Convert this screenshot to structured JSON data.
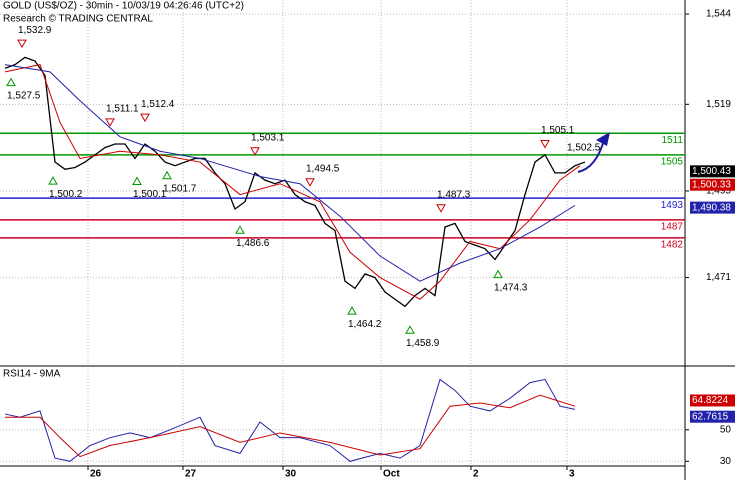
{
  "chart_data": [
    {
      "type": "line",
      "title": "GOLD (US$/OZ) - 30min - 10/03/19 04:26:46 (UTC+2)",
      "subtitle": "Research © TRADING CENTRAL",
      "xlim": [
        0,
        342.5
      ],
      "ylim": [
        1446.5,
        1547.9
      ],
      "yticks": [
        {
          "value": 1544,
          "label": "1,544"
        },
        {
          "value": 1519,
          "label": "1,519"
        },
        {
          "value": 1495,
          "label": "1,495"
        },
        {
          "value": 1471,
          "label": "1,471"
        }
      ],
      "series": [
        {
          "color": "#000000",
          "x": [
            2.5,
            7.5,
            12.5,
            17.5,
            22.5,
            27.5,
            32.5,
            37.5,
            42.5,
            47.5,
            52.5,
            57.5,
            62.5,
            67.5,
            72.5,
            77.5,
            82.5,
            87.5,
            92.5,
            97.5,
            102.5,
            107.5,
            112.5,
            117.5,
            122.5,
            127.5,
            132.5,
            137.5,
            142.5,
            147.5,
            152.5,
            157.5,
            162.5,
            167.5,
            172.5,
            177.5,
            182.5,
            187.5,
            192.5,
            197.5,
            202.5,
            207.5,
            212.5,
            217.5,
            222.5,
            227.5,
            232.5,
            237.5,
            242.5,
            247.5,
            252.5,
            257.5,
            262.5,
            267.5,
            272.5,
            277.5,
            282.5,
            287.5,
            292.5
          ],
          "values": [
            1529,
            1530,
            1532,
            1531,
            1527,
            1503,
            1501,
            1501.5,
            1503,
            1505,
            1507,
            1508,
            1508,
            1504,
            1508,
            1506,
            1503,
            1502,
            1503,
            1504,
            1504,
            1500,
            1497,
            1490,
            1492,
            1500,
            1498,
            1497,
            1498,
            1494,
            1492,
            1491,
            1486,
            1484,
            1470,
            1468,
            1472,
            1471,
            1467,
            1465,
            1463,
            1466,
            1468,
            1466,
            1485,
            1486,
            1481,
            1480,
            1479,
            1476,
            1480,
            1484,
            1494,
            1503,
            1505,
            1500,
            1500,
            1502,
            1503
          ]
        },
        {
          "color": "#cc0000",
          "x": [
            2.5,
            20,
            30,
            40,
            60,
            80,
            100,
            120,
            140,
            160,
            175,
            190,
            210,
            220,
            235,
            250,
            265,
            280,
            290
          ],
          "values": [
            1528,
            1530,
            1514,
            1504,
            1506,
            1505,
            1503,
            1494,
            1497,
            1492,
            1478,
            1471,
            1465,
            1470,
            1481,
            1479,
            1487,
            1498,
            1502
          ]
        },
        {
          "color": "#2222aa",
          "x": [
            2.5,
            25,
            40,
            60,
            80,
            100,
            130,
            150,
            170,
            190,
            210,
            230,
            250,
            270,
            287.5
          ],
          "values": [
            1530,
            1528,
            1520,
            1510,
            1506,
            1504,
            1499,
            1497,
            1488,
            1477,
            1470,
            1475,
            1479,
            1485,
            1491
          ]
        }
      ],
      "levels": [
        {
          "value": 1511,
          "color": "#009900"
        },
        {
          "value": 1505,
          "color": "#009900"
        },
        {
          "value": 1493,
          "color": "#2222cc"
        },
        {
          "value": 1487,
          "color": "#cc0022"
        },
        {
          "value": 1482,
          "color": "#cc0022"
        }
      ],
      "highs": [
        {
          "x": 11,
          "value": 1532.9,
          "label": "1,532.9"
        },
        {
          "x": 55,
          "value": 1511.1,
          "label": "1,511.1"
        },
        {
          "x": 72.5,
          "value": 1512.4,
          "label": "1,512.4"
        },
        {
          "x": 127.5,
          "value": 1503.1,
          "label": "1,503.1"
        },
        {
          "x": 155,
          "value": 1494.5,
          "label": "1,494.5"
        },
        {
          "x": 220.5,
          "value": 1487.3,
          "label": "1,487.3"
        },
        {
          "x": 272.5,
          "value": 1505.1,
          "label": "1,505.1"
        }
      ],
      "lows": [
        {
          "x": 5.5,
          "value": 1527.5,
          "label": "1,527.5"
        },
        {
          "x": 26.5,
          "value": 1500.2,
          "label": "1,500.2"
        },
        {
          "x": 68.5,
          "value": 1500.1,
          "label": "1,500.1"
        },
        {
          "x": 83.5,
          "value": 1501.7,
          "label": "1,501.7"
        },
        {
          "x": 120,
          "value": 1486.6,
          "label": "1,486.6"
        },
        {
          "x": 176,
          "value": 1464.2,
          "label": "1,464.2"
        },
        {
          "x": 205,
          "value": 1458.9,
          "label": "1,458.9"
        },
        {
          "x": 249,
          "value": 1474.3,
          "label": "1,474.3"
        }
      ],
      "target": {
        "value": 1502.5,
        "label": "1,502.5"
      },
      "last_values": [
        {
          "value": 1500.43,
          "label": "1,500.43",
          "color": "#000000"
        },
        {
          "value": 1500.33,
          "label": "1,500.33",
          "color": "#cc0000"
        },
        {
          "value": 1490.38,
          "label": "1,490.38",
          "color": "#2222aa"
        }
      ]
    },
    {
      "type": "line",
      "title": "RSI14 - 9MA",
      "xlim": [
        0,
        342.5
      ],
      "ylim": [
        27,
        88
      ],
      "yticks": [
        50,
        30
      ],
      "xticks": [
        {
          "value": 44,
          "label": "26"
        },
        {
          "value": 91.5,
          "label": "27"
        },
        {
          "value": 141.5,
          "label": "30"
        },
        {
          "value": 190.5,
          "label": "Oct"
        },
        {
          "value": 235.5,
          "label": "2"
        },
        {
          "value": 283.5,
          "label": "3"
        }
      ],
      "series": [
        {
          "color": "#2222aa",
          "x": [
            2.5,
            10,
            20,
            27.5,
            35,
            45,
            55,
            65,
            75,
            85,
            100,
            107.5,
            120,
            130,
            140,
            150,
            165,
            175,
            190,
            200,
            210,
            220,
            227.5,
            235,
            245,
            255,
            265,
            272.5,
            280,
            287.5
          ],
          "values": [
            60,
            58,
            62,
            32,
            30,
            40,
            45,
            48,
            45,
            50,
            58,
            40,
            35,
            55,
            45,
            45,
            40,
            30,
            35,
            32,
            40,
            82,
            75,
            65,
            62,
            70,
            80,
            82,
            65,
            63
          ]
        },
        {
          "color": "#cc0000",
          "x": [
            2.5,
            20,
            30,
            40,
            55,
            75,
            100,
            120,
            140,
            165,
            190,
            210,
            225,
            240,
            255,
            270,
            280,
            287.5
          ],
          "values": [
            58,
            58,
            45,
            33,
            40,
            45,
            52,
            42,
            48,
            42,
            34,
            38,
            65,
            67,
            64,
            72,
            68,
            65
          ]
        }
      ],
      "last_values": [
        {
          "value": 64.8224,
          "label": "64.8224",
          "color": "#cc0000"
        },
        {
          "value": 62.7615,
          "label": "62.7615",
          "color": "#2222aa"
        }
      ]
    }
  ]
}
